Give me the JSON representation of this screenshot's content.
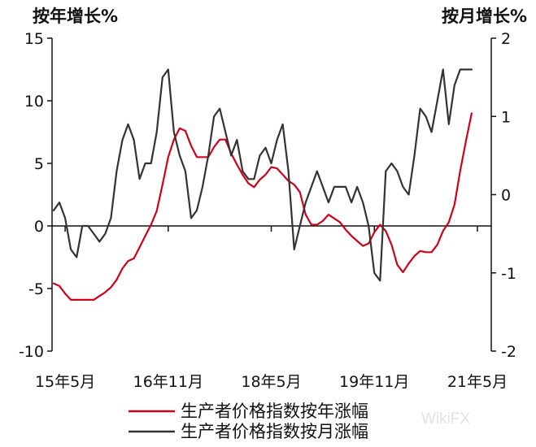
{
  "chart_data": {
    "type": "line",
    "left_axis_label": "按年增长%",
    "right_axis_label": "按月增长%",
    "left_ylim": [
      -10,
      15
    ],
    "left_yticks": [
      15,
      10,
      5,
      0,
      -5,
      -10
    ],
    "right_ylim": [
      -2,
      2
    ],
    "right_yticks": [
      2,
      1,
      0,
      -1,
      -2
    ],
    "x_range": [
      "2015-03",
      "2021-06"
    ],
    "x_tick_labels": [
      {
        "label": "15年5月",
        "date": "2015-05"
      },
      {
        "label": "16年11月",
        "date": "2016-11"
      },
      {
        "label": "18年5月",
        "date": "2018-05"
      },
      {
        "label": "19年11月",
        "date": "2019-11"
      },
      {
        "label": "21年5月",
        "date": "2021-05"
      }
    ],
    "x_start": "2015-03",
    "grid": false,
    "legend_position": "bottom",
    "series": [
      {
        "name": "生产者价格指数按年涨幅",
        "axis": "left",
        "color": "#d0021b",
        "values": [
          -4.6,
          -4.8,
          -5.4,
          -5.9,
          -5.9,
          -5.9,
          -5.9,
          -5.9,
          -5.6,
          -5.3,
          -4.9,
          -4.3,
          -3.4,
          -2.8,
          -2.6,
          -1.7,
          -0.8,
          0.1,
          1.2,
          3.3,
          5.5,
          6.9,
          7.8,
          7.6,
          6.4,
          5.5,
          5.5,
          5.5,
          6.3,
          6.9,
          6.9,
          5.8,
          4.9,
          4.1,
          3.4,
          3.1,
          3.7,
          4.1,
          4.7,
          4.6,
          4.1,
          3.6,
          3.3,
          2.7,
          0.9,
          0.1,
          0.1,
          0.4,
          0.9,
          0.6,
          0.3,
          -0.3,
          -0.8,
          -1.2,
          -1.6,
          -1.4,
          -0.5,
          0.1,
          -0.4,
          -1.5,
          -3.1,
          -3.7,
          -3.0,
          -2.4,
          -2.0,
          -2.1,
          -2.1,
          -1.5,
          -0.4,
          0.3,
          1.7,
          4.4,
          6.8,
          9.0
        ]
      },
      {
        "name": "生产者价格指数按月涨幅",
        "axis": "right",
        "color": "#333333",
        "values": [
          -0.2,
          -0.1,
          -0.3,
          -0.7,
          -0.8,
          -0.4,
          -0.4,
          -0.5,
          -0.6,
          -0.5,
          -0.3,
          0.3,
          0.7,
          0.9,
          0.7,
          0.2,
          0.4,
          0.4,
          0.8,
          1.5,
          1.6,
          0.8,
          0.5,
          0.3,
          -0.3,
          -0.2,
          0.1,
          0.5,
          1.0,
          1.1,
          0.8,
          0.5,
          0.7,
          0.3,
          0.2,
          0.2,
          0.5,
          0.6,
          0.4,
          0.7,
          0.9,
          0.3,
          -0.7,
          -0.4,
          -0.1,
          0.1,
          0.3,
          0.1,
          -0.1,
          0.1,
          0.1,
          0.1,
          -0.1,
          0.1,
          -0.1,
          -0.4,
          -1.0,
          -1.1,
          0.3,
          0.4,
          0.3,
          0.1,
          0.0,
          0.5,
          1.1,
          1.0,
          0.8,
          1.2,
          1.6,
          0.9,
          1.4,
          1.6,
          1.6,
          1.6
        ]
      }
    ]
  },
  "watermark": "WikiFX"
}
